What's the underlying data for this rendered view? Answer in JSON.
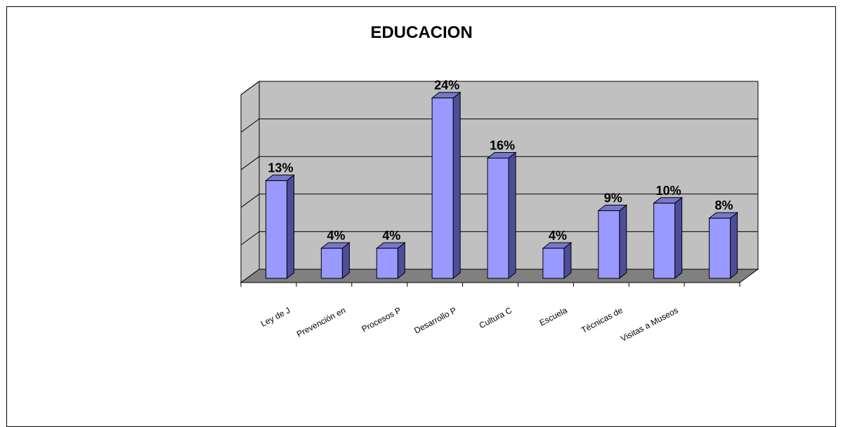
{
  "chart_data": {
    "type": "bar",
    "title": "EDUCACION",
    "categories": [
      "Ley de J",
      "Prevención en",
      "Procesos P",
      "Desarrollo P",
      "Cultura C",
      "Escuela",
      "Técnicas de",
      "Visitas a Museos",
      ""
    ],
    "values": [
      13,
      4,
      4,
      24,
      16,
      4,
      9,
      10,
      8
    ],
    "data_labels": [
      "13%",
      "4%",
      "4%",
      "24%",
      "16%",
      "4%",
      "9%",
      "10%",
      "8%"
    ],
    "ylim": [
      0,
      25
    ],
    "grid": true,
    "style": "3d",
    "colors": {
      "bar_front": "#9999ff",
      "bar_side": "#4d4d99",
      "bar_top": "#7777cc",
      "wall": "#c0c0c0",
      "floor": "#808080",
      "grid": "#000000"
    }
  }
}
